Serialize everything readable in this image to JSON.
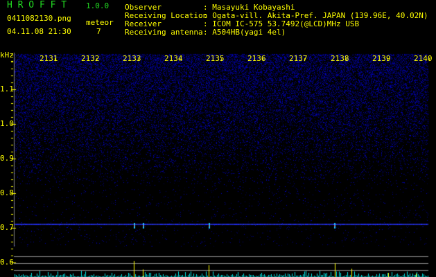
{
  "app": {
    "name": "H R O F F T",
    "version": "1.0.0"
  },
  "file": {
    "name": "0411082130.png",
    "datetime": "04.11.08 21:30"
  },
  "meteor": {
    "label": "meteor",
    "count": "7"
  },
  "info": [
    {
      "label": "Observer",
      "value": ": Masayuki Kobayashi"
    },
    {
      "label": "Receiving Location",
      "value": ": Ogata-vill. Akita-Pref. JAPAN (139.96E, 40.02N)"
    },
    {
      "label": "Receiver",
      "value": ": ICOM IC-575 53.7492(@LCD)MHz USB"
    },
    {
      "label": "Receiving antenna",
      "value": ": A504HB(yagi 4el)"
    }
  ],
  "spectrogram": {
    "y_unit": "kHz",
    "y_ticks": [
      "1.1",
      "1.0",
      "0.9",
      "0.8",
      "0.7",
      "0.6"
    ],
    "time_ticks": [
      "2131",
      "2132",
      "2133",
      "2134",
      "2135",
      "2136",
      "2137",
      "2138",
      "2139",
      "2140"
    ],
    "colors": {
      "noise": "#1a1aff",
      "carrier": "#3050ff",
      "histogram": "#00e0e0",
      "meteor_marker": "#ffff00",
      "axis": "#808080"
    }
  }
}
